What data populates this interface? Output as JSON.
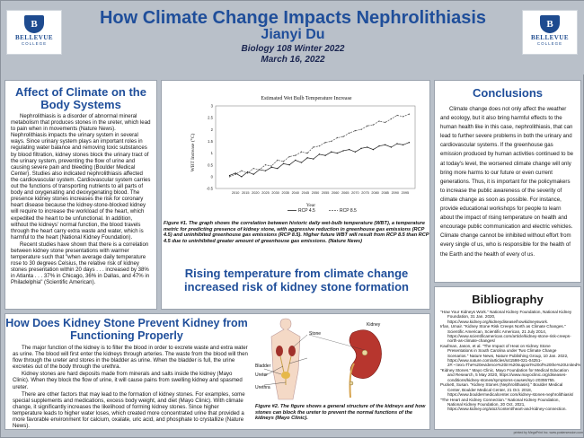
{
  "header": {
    "title": "How Climate Change Impacts Nephrolithiasis",
    "author": "Jianyi Du",
    "course": "Biology 108 Winter 2022",
    "date": "March 16, 2022",
    "logo_name": "BELLEVUE",
    "logo_sub": "COLLEGE",
    "logo_letter": "B"
  },
  "affect": {
    "title": "Affect of Climate on the Body Systems",
    "p1": "Nephrolithiasis is a disorder of abnormal mineral metabolism that produces stones in the ureter, which lead to pain when in movements (Nature News). Nephrolithiasis impacts the urinary system in several ways. Since urinary system plays an important roles in regulating water balance and removing toxic substances by blood filtration, kidney stones block the urinary tract of the urinary system, preventing the flow of urine and causing severe pain and bleeding (Boulder Medical Center). Studies also indicated nephrolithiasis affected the cardiovascular system. Cardiovascular system carries out the functions of transporting nutrients to all parts of body and oxygenating and deoxygenating blood. The presence kidney stones increases the risk for coronary heart disease because the kidney-stone-blocked kidney will require to increase the workload of the heart, which expedited the heart to be unfunctional. In addition, without the kidneys' normal function, the blood travels through the heart carry extra waste and water, which is harmful to the heart (National Kidney Foundation).",
    "p2": "Recent studies have shown that there is a correlation between kidney stone presentations with warmer temperature such that \"when average daily temperature rose to 30 degrees Celsius, the relative risk of kidney stones presentation within 20 days . . . increased by 38% in Atlanta . . . 37% in Chicago, 36% in Dallas, and 47% in Philadelphia\" (Scientific American)."
  },
  "chart_data": {
    "type": "line",
    "title": "Estimated Wet Bulb Temperature Increase",
    "xlabel": "Year",
    "ylabel": "WBT Increase (°C)",
    "xlim": [
      2000,
      2100
    ],
    "ylim": [
      -0.5,
      3
    ],
    "x_ticks": [
      2010,
      2015,
      2020,
      2025,
      2030,
      2035,
      2040,
      2045,
      2050,
      2055,
      2060,
      2065,
      2070,
      2075,
      2080,
      2085,
      2090,
      2095
    ],
    "y_ticks": [
      3,
      2.5,
      2,
      1.5,
      1,
      0.5,
      0,
      -0.5
    ],
    "series": [
      {
        "name": "RCP 4.5",
        "color": "#222222",
        "x": [
          2007,
          2010,
          2013,
          2016,
          2019,
          2022,
          2025,
          2028,
          2031,
          2034,
          2037,
          2040,
          2043,
          2046,
          2049,
          2052,
          2055,
          2058,
          2061,
          2064,
          2067,
          2070,
          2073,
          2076,
          2079,
          2082,
          2085,
          2088,
          2091,
          2094,
          2097
        ],
        "y": [
          0.05,
          0.15,
          0.0,
          0.2,
          0.1,
          0.3,
          0.25,
          0.4,
          0.35,
          0.55,
          0.5,
          0.7,
          0.6,
          0.8,
          0.75,
          0.95,
          0.9,
          1.05,
          1.0,
          1.1,
          1.15,
          1.05,
          1.2,
          1.25,
          1.15,
          1.3,
          1.35,
          1.25,
          1.4,
          1.35,
          1.45
        ]
      },
      {
        "name": "RCP 8.5",
        "color": "#555555",
        "x": [
          2007,
          2010,
          2013,
          2016,
          2019,
          2022,
          2025,
          2028,
          2031,
          2034,
          2037,
          2040,
          2043,
          2046,
          2049,
          2052,
          2055,
          2058,
          2061,
          2064,
          2067,
          2070,
          2073,
          2076,
          2079,
          2082,
          2085,
          2088,
          2091,
          2094,
          2097
        ],
        "y": [
          0.0,
          0.1,
          0.25,
          0.15,
          0.35,
          0.3,
          0.5,
          0.45,
          0.7,
          0.65,
          0.85,
          0.9,
          1.05,
          1.0,
          1.25,
          1.3,
          1.45,
          1.5,
          1.65,
          1.7,
          1.85,
          1.95,
          2.0,
          2.15,
          2.2,
          2.35,
          2.3,
          2.45,
          2.6,
          2.55,
          2.65
        ]
      }
    ]
  },
  "figure1": {
    "caption": "Figure #1. The graph shows the correlation between historic daily wet-bulb temperature (WBT), a temperature metric for predicting presence of kidney stone, with aggressive reduction in greenhouse gas emissions (RCP 4.5) and uninhibited greenhouse gas emissions (RCP 8.5). Higher future WBT will result from RCP 8.5 than RCP 4.5 due to uninhibited greater amount of greenhouse gas emissions. (Nature News)"
  },
  "mid_heading": "Rising temperature from climate change increased risk of kidney stone formation",
  "conclusions": {
    "title": "Conclusions",
    "text": "Climate change does not only affect the weather and ecology, but it also bring harmful effects to the human health like in this case, nephrolithiasis, that can lead to further severe problems in both the urinary and cardiovascular systems. If the greenhouse gas emission produced by human activities continued to be at today's level, the worsened climate change will only bring more harms to our future or even current generations. Thus, it is important for the policymakers to increase the public awareness of the severity of climate change as soon as possible. For instance, provide educational workshops for people to learn about the impact of rising temperature on health and encourage public communication and electric vehicles. Climate change cannot be inhibited without effort from every single of us, who is responsible for the health of the Earth and the health of every of us."
  },
  "bibliography": {
    "title": "Bibliography",
    "entries": [
      "\"How Your Kidneys Work.\" National Kidney Foundation, National Kidney Foundation, 31 Jan. 2020, https://www.kidney.org/kidneydisease/howkidneyswork.",
      "Irfan, Umair. \"Kidney Stone Risk Creeps North as Climate Changes.\" Scientific American, Scientific American, 21 July 2014, https://www.scientificamerican.com/article/kidney-stone-risk-creeps-north-as-climate-changes/",
      "Kaufman, Jason, et al. \"The Impact of Heat on Kidney Stone Presentations in South Carolina under Two Climate Change Scenarios.\" Nature News, Nature Publishing Group, 10 Jan. 2022, https://www.nature.com/articles/s41598-021-04251-2#:~:text=The%20evidence%20in%20support%20of%20the%20United%20States%20",
      "\"Kidney Stones.\" Mayo Clinic, Mayo Foundation for Medical Education and Research, 5 May 2020, https://www.mayoclinic.org/diseases-conditions/kidney-stones/symptoms-causes/syc-20355755.",
      "Puckett, Susan. \"Kidney Stones (Nephrolithiasis).\" Boulder Medical Center, Boulder Medical Center, 21 Oct. 2018, https://www.bouldermedicalcenter.com/kidney-stones-nephrolithiasis/",
      "\"The Heart and Kidney Connection.\" National Kidney Foundation, National Kidney Foundation, 20 Oct. 2021, https://www.kidney.org/atoz/content/heart-and-kidney-connection."
    ]
  },
  "kidney": {
    "title": "How Does Kidney Stone Prevent Kidney from Functioning Properly",
    "p1": "The major function of the kidney is to filter the blood in order to excrete waste and extra water as urine. The blood will first enter the kidneys through arteries. The waste from the blood will then flow through the ureter and stores in the bladder as urine. When the bladder is full, the urine excretes out of the body through the urethra.",
    "p2": "Kidney stones are hard deposits made from minerals and salts inside the kidney (Mayo Clinic). When they block the flow of urine, it will cause pains from swelling kidney and spasmed ureter.",
    "p3": "There are other factors that may lead to the formation of kidney stones. For examples, some special supplements and medications, excess body weight, and diet (Mayo Clinic). With climate change, it significantly increases the likelihood of forming kidney stones. Since higher temperature leads to higher water loses, which created more concentrated urine that provided a more favorable environment for calcium, oxalate, uric acid, and phosphate to crystallize (Nature News)."
  },
  "diagram": {
    "labels": [
      "Kidney",
      "Stone",
      "Bladder",
      "Ureter",
      "Urethra"
    ]
  },
  "figure2": {
    "caption": "Figure #2. The figure shows a general structure of the kidneys and how stones can block the ureter to prevent the normal functions of the kidneys (Mayo Clinic)."
  },
  "footer": "printed by MegaPrint Inc. www.postersession.com"
}
